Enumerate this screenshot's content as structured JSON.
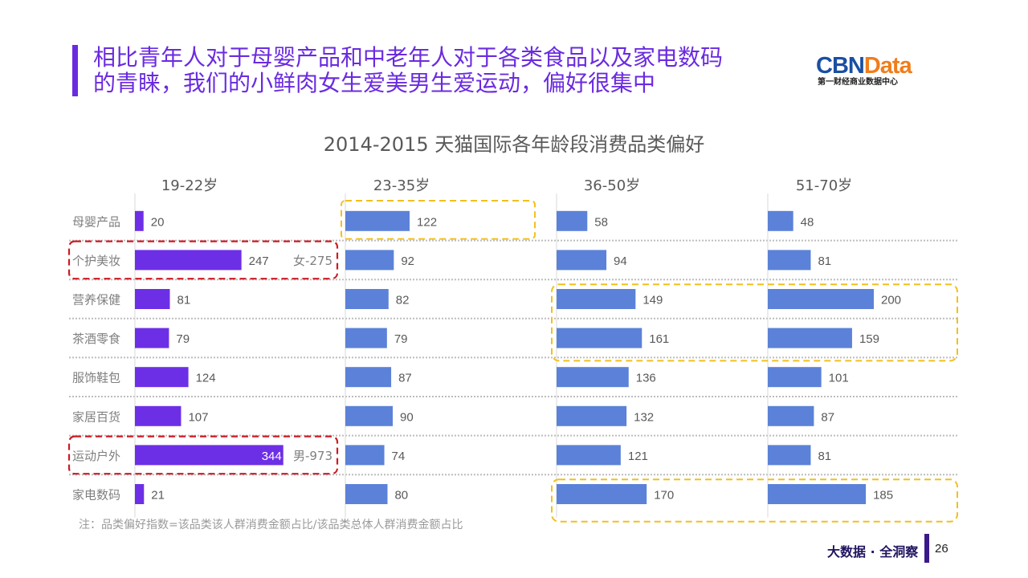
{
  "headline": {
    "line1": "相比青年人对于母婴产品和中老年人对于各类食品以及家电数码",
    "line2": "的青睐，我们的小鲜肉女生爱美男生爱运动，偏好很集中"
  },
  "logo": {
    "part1": "CBN",
    "part2": "Data",
    "subtitle": "第一财经商业数据中心"
  },
  "colors": {
    "accent": "#6a2be0",
    "bar_young": "#6d2fe6",
    "bar_other": "#5b82d8",
    "highlight_red": "#cc1b24",
    "highlight_yellow": "#f2c01d"
  },
  "footnote": "注：品类偏好指数=该品类该人群消费金额占比/该品类总体人群消费金额占比",
  "footer": {
    "slogan": "大数据 · 全洞察",
    "page": "26"
  },
  "chart_data": {
    "type": "bar",
    "orientation": "horizontal",
    "title": "2014-2015 天猫国际各年龄段消费品类偏好",
    "categories": [
      "母婴产品",
      "个护美妆",
      "营养保健",
      "茶酒零食",
      "服饰鞋包",
      "家居百货",
      "运动户外",
      "家电数码"
    ],
    "series": [
      {
        "name": "19-22岁",
        "values": [
          20,
          247,
          81,
          79,
          124,
          107,
          344,
          21
        ]
      },
      {
        "name": "23-35岁",
        "values": [
          122,
          92,
          82,
          79,
          87,
          90,
          74,
          80
        ]
      },
      {
        "name": "36-50岁",
        "values": [
          58,
          94,
          149,
          161,
          136,
          132,
          121,
          170
        ]
      },
      {
        "name": "51-70岁",
        "values": [
          48,
          81,
          200,
          159,
          101,
          87,
          81,
          185
        ]
      }
    ],
    "annotations": [
      {
        "series": "19-22岁",
        "category": "个护美妆",
        "text": "女-275",
        "highlight": "red"
      },
      {
        "series": "19-22岁",
        "category": "运动户外",
        "text": "男-973",
        "highlight": "red"
      },
      {
        "series": "23-35岁",
        "category": "母婴产品",
        "highlight": "yellow"
      },
      {
        "series": [
          "36-50岁",
          "51-70岁"
        ],
        "categories": [
          "营养保健",
          "茶酒零食"
        ],
        "highlight": "yellow"
      },
      {
        "series": [
          "36-50岁",
          "51-70岁"
        ],
        "categories": [
          "家电数码"
        ],
        "highlight": "yellow"
      }
    ],
    "grid": "dotted row separators",
    "legend": "none"
  }
}
